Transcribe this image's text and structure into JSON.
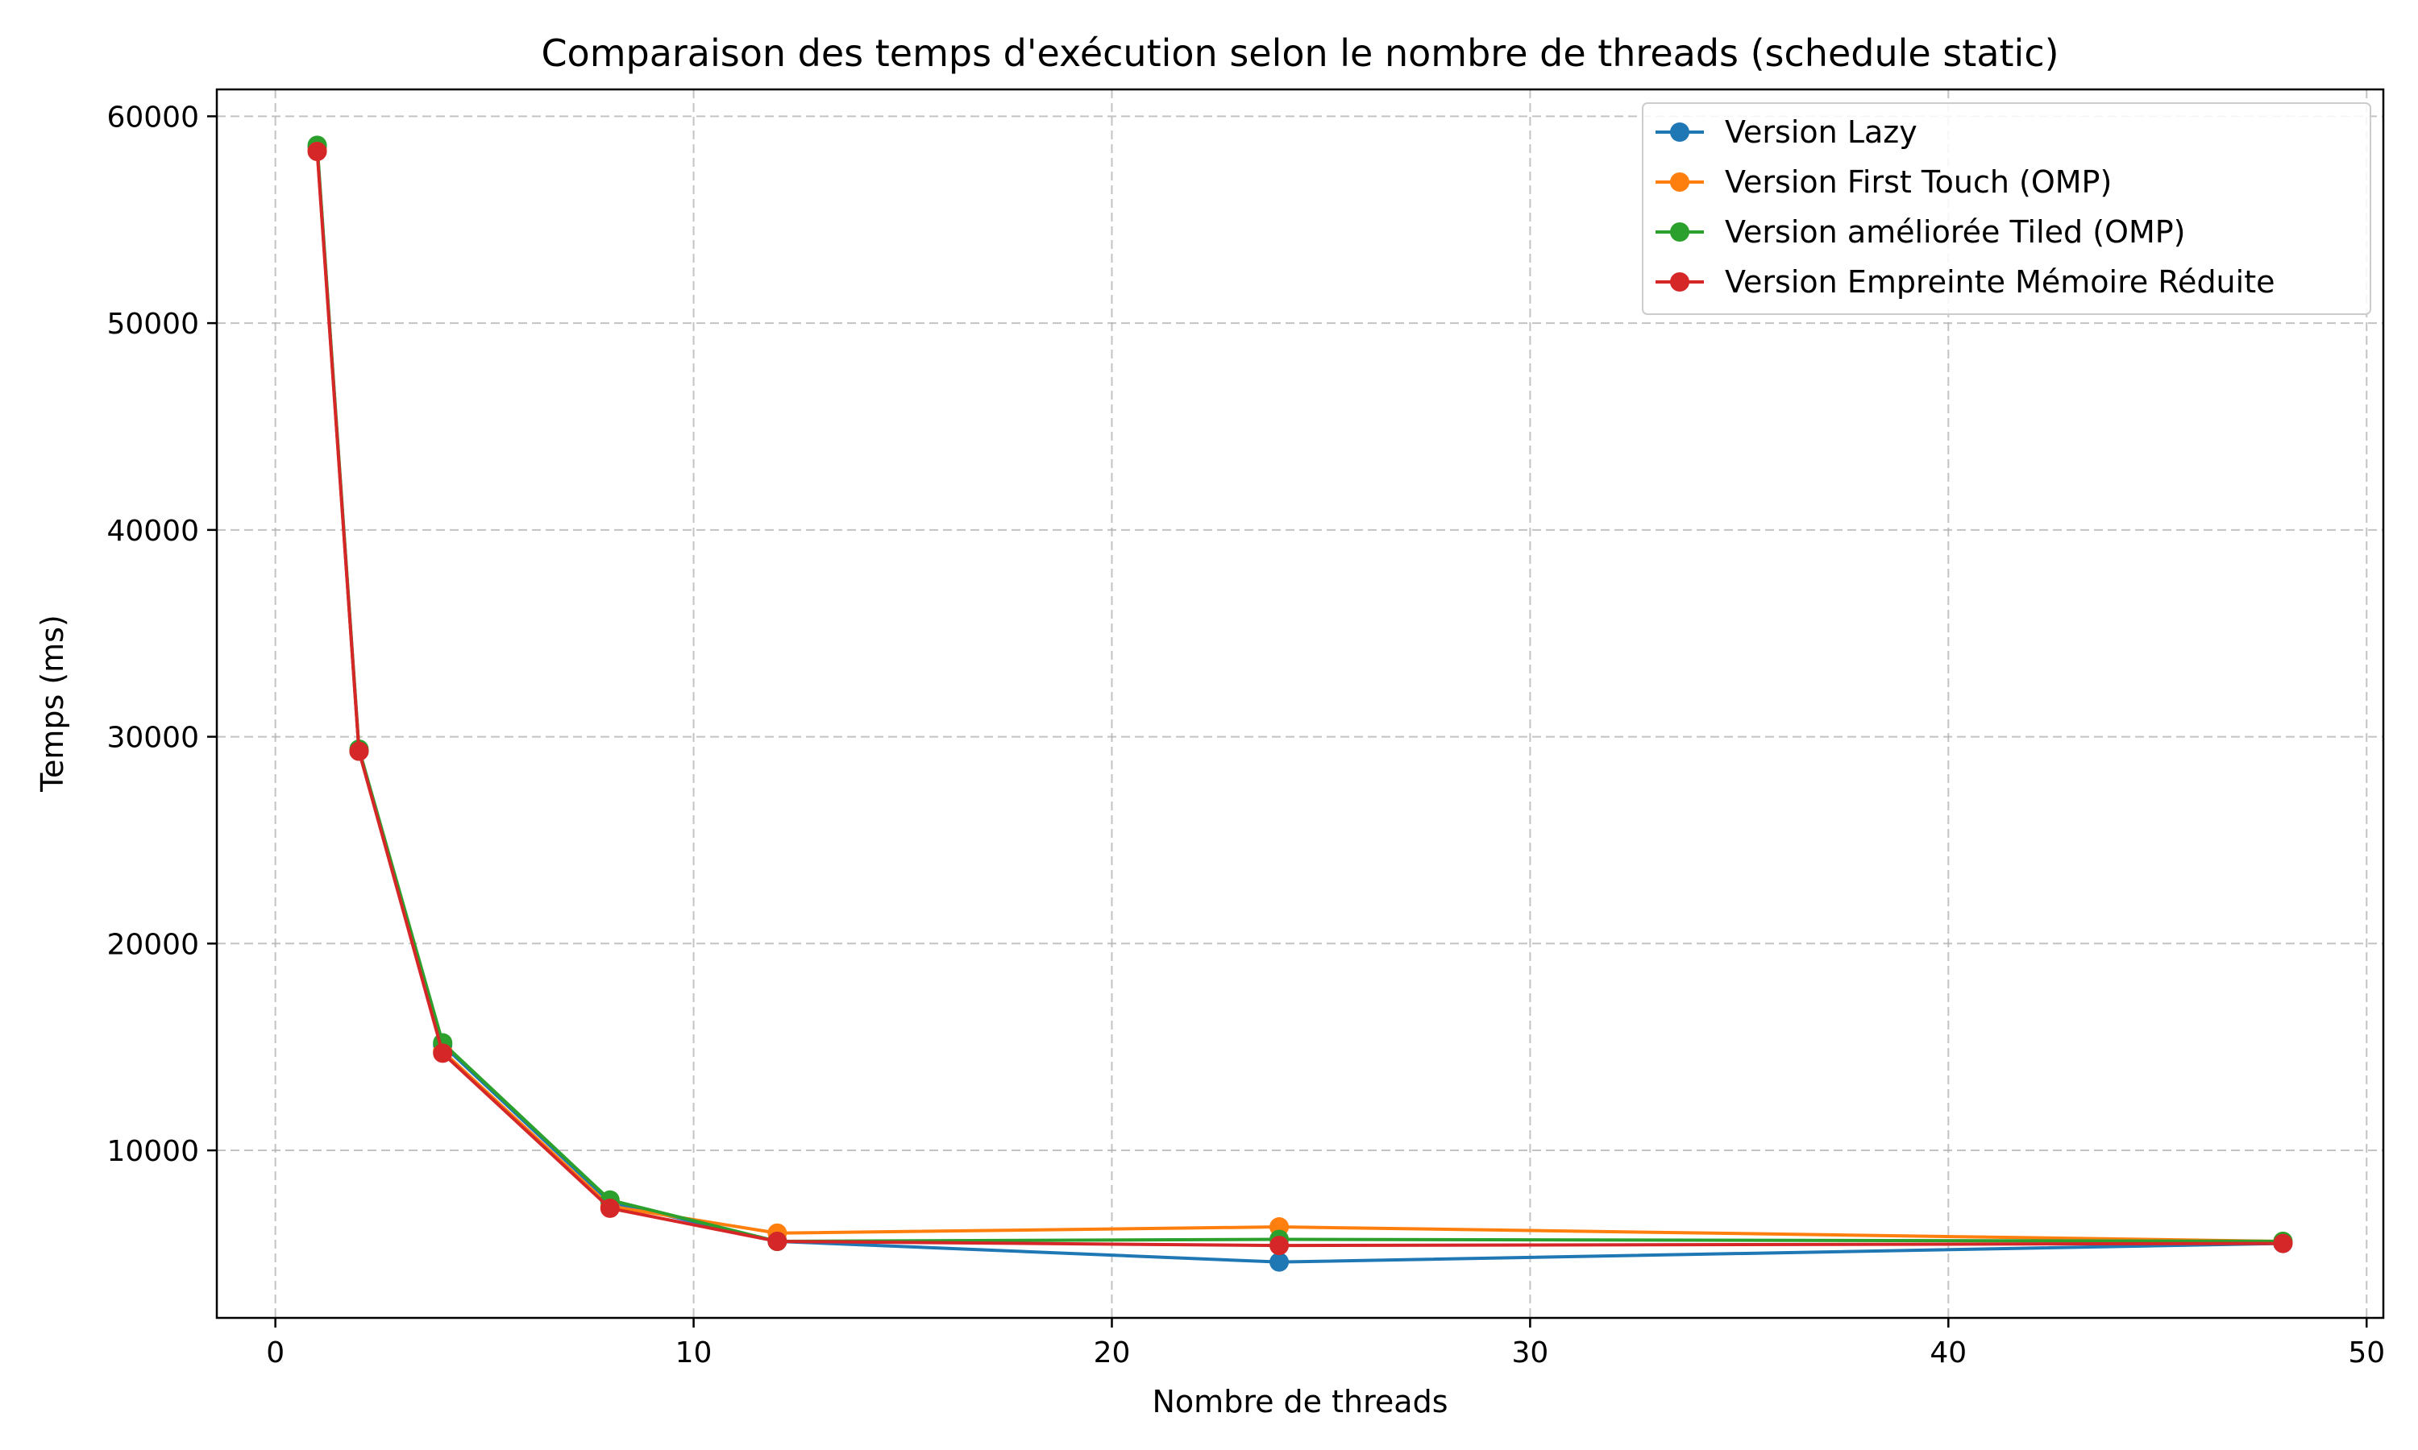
{
  "chart_data": {
    "type": "line",
    "title": "Comparaison des temps d'exécution selon le nombre de threads (schedule static)",
    "xlabel": "Nombre de threads",
    "ylabel": "Temps (ms)",
    "xlim": [
      -1.4,
      50.4
    ],
    "ylim": [
      1900,
      61300
    ],
    "xticks": [
      0,
      10,
      20,
      30,
      40,
      50
    ],
    "yticks": [
      10000,
      20000,
      30000,
      40000,
      50000,
      60000
    ],
    "grid": true,
    "legend_position": "top-right",
    "x": [
      1,
      2,
      4,
      8,
      12,
      24,
      48
    ],
    "series": [
      {
        "name": "Version Lazy",
        "color": "#1f77b4",
        "values": [
          58500,
          29300,
          15100,
          7500,
          5600,
          4600,
          5500
        ]
      },
      {
        "name": "Version First Touch (OMP)",
        "color": "#ff7f0e",
        "values": [
          58400,
          29300,
          14800,
          7300,
          6000,
          6300,
          5600
        ]
      },
      {
        "name": "Version améliorée Tiled (OMP)",
        "color": "#2ca02c",
        "values": [
          58600,
          29400,
          15200,
          7600,
          5600,
          5700,
          5600
        ]
      },
      {
        "name": "Version Empreinte Mémoire Réduite",
        "color": "#d62728",
        "values": [
          58300,
          29300,
          14700,
          7200,
          5600,
          5400,
          5500
        ]
      }
    ]
  }
}
